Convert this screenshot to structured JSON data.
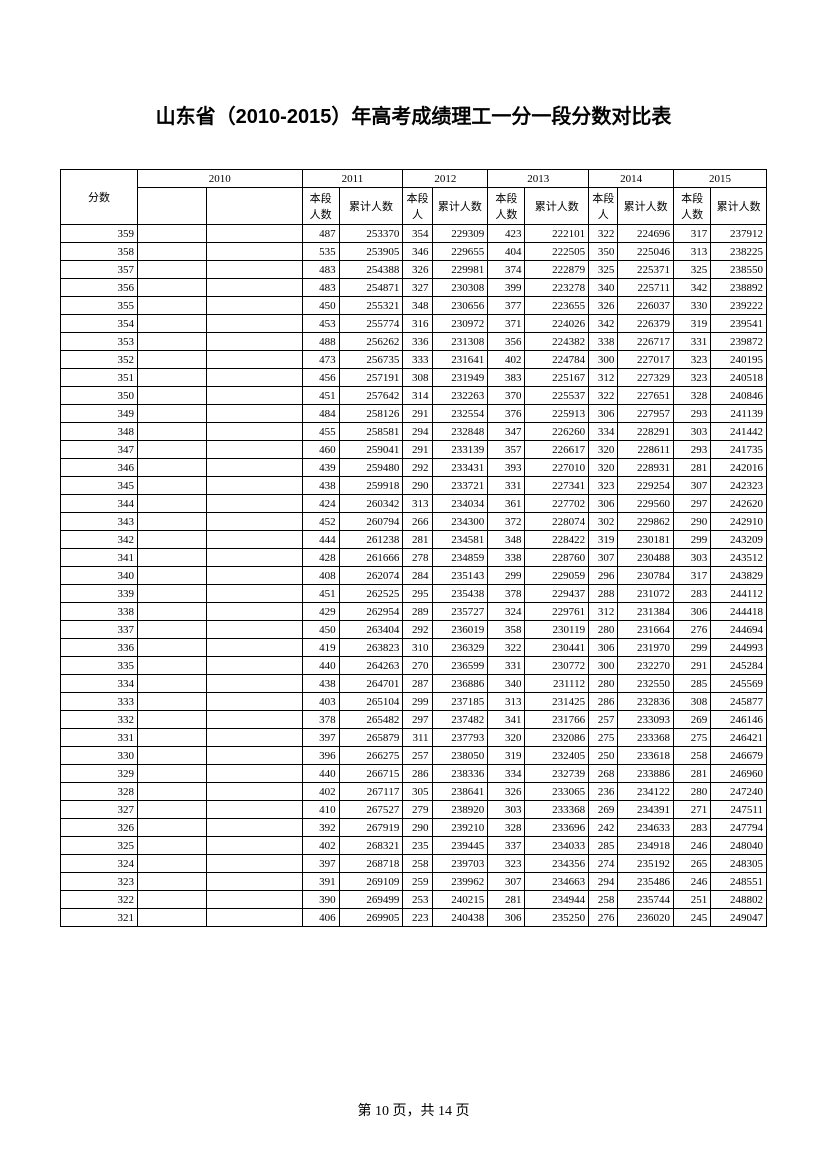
{
  "title": "山东省（2010-2015）年高考成绩理工一分一段分数对比表",
  "header": {
    "score": "分数",
    "years": [
      "2010",
      "2011",
      "2012",
      "2013",
      "2014",
      "2015"
    ],
    "seg": "本段人数",
    "cum": "累计人数",
    "seg_short": "本段人",
    "cum_short": "累计人数"
  },
  "rows": [
    {
      "s": 359,
      "c": [
        null,
        null,
        487,
        253370,
        354,
        229309,
        423,
        222101,
        322,
        224696,
        317,
        237912
      ]
    },
    {
      "s": 358,
      "c": [
        null,
        null,
        535,
        253905,
        346,
        229655,
        404,
        222505,
        350,
        225046,
        313,
        238225
      ]
    },
    {
      "s": 357,
      "c": [
        null,
        null,
        483,
        254388,
        326,
        229981,
        374,
        222879,
        325,
        225371,
        325,
        238550
      ]
    },
    {
      "s": 356,
      "c": [
        null,
        null,
        483,
        254871,
        327,
        230308,
        399,
        223278,
        340,
        225711,
        342,
        238892
      ]
    },
    {
      "s": 355,
      "c": [
        null,
        null,
        450,
        255321,
        348,
        230656,
        377,
        223655,
        326,
        226037,
        330,
        239222
      ]
    },
    {
      "s": 354,
      "c": [
        null,
        null,
        453,
        255774,
        316,
        230972,
        371,
        224026,
        342,
        226379,
        319,
        239541
      ]
    },
    {
      "s": 353,
      "c": [
        null,
        null,
        488,
        256262,
        336,
        231308,
        356,
        224382,
        338,
        226717,
        331,
        239872
      ]
    },
    {
      "s": 352,
      "c": [
        null,
        null,
        473,
        256735,
        333,
        231641,
        402,
        224784,
        300,
        227017,
        323,
        240195
      ]
    },
    {
      "s": 351,
      "c": [
        null,
        null,
        456,
        257191,
        308,
        231949,
        383,
        225167,
        312,
        227329,
        323,
        240518
      ]
    },
    {
      "s": 350,
      "c": [
        null,
        null,
        451,
        257642,
        314,
        232263,
        370,
        225537,
        322,
        227651,
        328,
        240846
      ]
    },
    {
      "s": 349,
      "c": [
        null,
        null,
        484,
        258126,
        291,
        232554,
        376,
        225913,
        306,
        227957,
        293,
        241139
      ]
    },
    {
      "s": 348,
      "c": [
        null,
        null,
        455,
        258581,
        294,
        232848,
        347,
        226260,
        334,
        228291,
        303,
        241442
      ]
    },
    {
      "s": 347,
      "c": [
        null,
        null,
        460,
        259041,
        291,
        233139,
        357,
        226617,
        320,
        228611,
        293,
        241735
      ]
    },
    {
      "s": 346,
      "c": [
        null,
        null,
        439,
        259480,
        292,
        233431,
        393,
        227010,
        320,
        228931,
        281,
        242016
      ]
    },
    {
      "s": 345,
      "c": [
        null,
        null,
        438,
        259918,
        290,
        233721,
        331,
        227341,
        323,
        229254,
        307,
        242323
      ]
    },
    {
      "s": 344,
      "c": [
        null,
        null,
        424,
        260342,
        313,
        234034,
        361,
        227702,
        306,
        229560,
        297,
        242620
      ]
    },
    {
      "s": 343,
      "c": [
        null,
        null,
        452,
        260794,
        266,
        234300,
        372,
        228074,
        302,
        229862,
        290,
        242910
      ]
    },
    {
      "s": 342,
      "c": [
        null,
        null,
        444,
        261238,
        281,
        234581,
        348,
        228422,
        319,
        230181,
        299,
        243209
      ]
    },
    {
      "s": 341,
      "c": [
        null,
        null,
        428,
        261666,
        278,
        234859,
        338,
        228760,
        307,
        230488,
        303,
        243512
      ]
    },
    {
      "s": 340,
      "c": [
        null,
        null,
        408,
        262074,
        284,
        235143,
        299,
        229059,
        296,
        230784,
        317,
        243829
      ]
    },
    {
      "s": 339,
      "c": [
        null,
        null,
        451,
        262525,
        295,
        235438,
        378,
        229437,
        288,
        231072,
        283,
        244112
      ]
    },
    {
      "s": 338,
      "c": [
        null,
        null,
        429,
        262954,
        289,
        235727,
        324,
        229761,
        312,
        231384,
        306,
        244418
      ]
    },
    {
      "s": 337,
      "c": [
        null,
        null,
        450,
        263404,
        292,
        236019,
        358,
        230119,
        280,
        231664,
        276,
        244694
      ]
    },
    {
      "s": 336,
      "c": [
        null,
        null,
        419,
        263823,
        310,
        236329,
        322,
        230441,
        306,
        231970,
        299,
        244993
      ]
    },
    {
      "s": 335,
      "c": [
        null,
        null,
        440,
        264263,
        270,
        236599,
        331,
        230772,
        300,
        232270,
        291,
        245284
      ]
    },
    {
      "s": 334,
      "c": [
        null,
        null,
        438,
        264701,
        287,
        236886,
        340,
        231112,
        280,
        232550,
        285,
        245569
      ]
    },
    {
      "s": 333,
      "c": [
        null,
        null,
        403,
        265104,
        299,
        237185,
        313,
        231425,
        286,
        232836,
        308,
        245877
      ]
    },
    {
      "s": 332,
      "c": [
        null,
        null,
        378,
        265482,
        297,
        237482,
        341,
        231766,
        257,
        233093,
        269,
        246146
      ]
    },
    {
      "s": 331,
      "c": [
        null,
        null,
        397,
        265879,
        311,
        237793,
        320,
        232086,
        275,
        233368,
        275,
        246421
      ]
    },
    {
      "s": 330,
      "c": [
        null,
        null,
        396,
        266275,
        257,
        238050,
        319,
        232405,
        250,
        233618,
        258,
        246679
      ]
    },
    {
      "s": 329,
      "c": [
        null,
        null,
        440,
        266715,
        286,
        238336,
        334,
        232739,
        268,
        233886,
        281,
        246960
      ]
    },
    {
      "s": 328,
      "c": [
        null,
        null,
        402,
        267117,
        305,
        238641,
        326,
        233065,
        236,
        234122,
        280,
        247240
      ]
    },
    {
      "s": 327,
      "c": [
        null,
        null,
        410,
        267527,
        279,
        238920,
        303,
        233368,
        269,
        234391,
        271,
        247511
      ]
    },
    {
      "s": 326,
      "c": [
        null,
        null,
        392,
        267919,
        290,
        239210,
        328,
        233696,
        242,
        234633,
        283,
        247794
      ]
    },
    {
      "s": 325,
      "c": [
        null,
        null,
        402,
        268321,
        235,
        239445,
        337,
        234033,
        285,
        234918,
        246,
        248040
      ]
    },
    {
      "s": 324,
      "c": [
        null,
        null,
        397,
        268718,
        258,
        239703,
        323,
        234356,
        274,
        235192,
        265,
        248305
      ]
    },
    {
      "s": 323,
      "c": [
        null,
        null,
        391,
        269109,
        259,
        239962,
        307,
        234663,
        294,
        235486,
        246,
        248551
      ]
    },
    {
      "s": 322,
      "c": [
        null,
        null,
        390,
        269499,
        253,
        240215,
        281,
        234944,
        258,
        235744,
        251,
        248802
      ]
    },
    {
      "s": 321,
      "c": [
        null,
        null,
        406,
        269905,
        223,
        240438,
        306,
        235250,
        276,
        236020,
        245,
        249047
      ]
    }
  ],
  "footer": {
    "prefix": "第 ",
    "page": "10",
    "mid": " 页，共 ",
    "total": "14",
    "suffix": " 页"
  }
}
